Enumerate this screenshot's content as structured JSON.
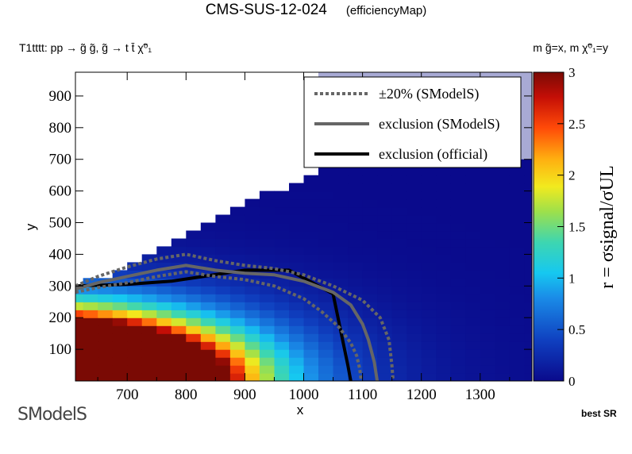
{
  "header": {
    "title": "CMS-SUS-12-024",
    "subtitle": "(efficiencyMap)",
    "process": "T1tttt: pp → g̃ g̃, g̃ → t t̄ χ̃⁰₁",
    "mass_note": "m g̃=x, m χ̃⁰₁=y",
    "best_sr": "best SR"
  },
  "logo": {
    "text": "SModelS"
  },
  "chart_data": {
    "type": "heatmap",
    "xlabel": "x",
    "ylabel": "y",
    "zlabel": "r = σsignal/σUL",
    "xlim": [
      612,
      1388
    ],
    "ylim": [
      0,
      975
    ],
    "zlim": [
      0,
      3
    ],
    "x_ticks": [
      700,
      800,
      900,
      1000,
      1100,
      1200,
      1300
    ],
    "y_ticks": [
      100,
      200,
      300,
      400,
      500,
      600,
      700,
      800,
      900
    ],
    "z_ticks": [
      0,
      0.5,
      1,
      1.5,
      2,
      2.5,
      3
    ],
    "cell_size": [
      25,
      25
    ],
    "excluded_region_color": "#a8aad4",
    "legend": {
      "placement": "top-right",
      "entries": [
        {
          "label": "±20% (SModelS)",
          "style": "dotted",
          "color": "#666666"
        },
        {
          "label": "exclusion (SModelS)",
          "style": "solid",
          "color": "#666666"
        },
        {
          "label": "exclusion (official)",
          "style": "solid",
          "color": "#000000"
        }
      ]
    },
    "series": [
      {
        "name": "exclusion (official)",
        "x": [
          612,
          700,
          775,
          900,
          975,
          1050,
          1075,
          1080
        ],
        "y": [
          300,
          305,
          315,
          350,
          350,
          275,
          50,
          0
        ]
      },
      {
        "name": "exclusion (SModelS)",
        "x": [
          612,
          650,
          700,
          750,
          800,
          850,
          900,
          950,
          1000,
          1050,
          1080,
          1100,
          1110,
          1120,
          1125
        ],
        "y": [
          290,
          310,
          330,
          350,
          365,
          350,
          340,
          335,
          315,
          280,
          240,
          180,
          130,
          60,
          0
        ]
      },
      {
        "name": "±20% upper (SModelS)",
        "x": [
          612,
          650,
          700,
          750,
          800,
          850,
          900,
          950,
          1000,
          1050,
          1100,
          1130,
          1145,
          1150,
          1152
        ],
        "y": [
          300,
          330,
          360,
          385,
          400,
          380,
          365,
          355,
          335,
          300,
          255,
          200,
          130,
          50,
          0
        ]
      },
      {
        "name": "±20% lower (SModelS)",
        "x": [
          612,
          650,
          700,
          750,
          800,
          850,
          900,
          950,
          1000,
          1030,
          1060,
          1080,
          1090,
          1095,
          1098
        ],
        "y": [
          280,
          295,
          310,
          330,
          345,
          330,
          320,
          300,
          260,
          220,
          170,
          120,
          80,
          40,
          0
        ]
      }
    ]
  }
}
